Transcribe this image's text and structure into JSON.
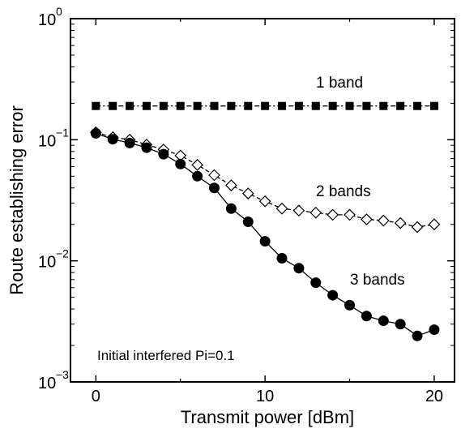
{
  "chart_data": {
    "type": "line",
    "title": "",
    "xlabel": "Transmit power [dBm]",
    "ylabel": "Route establishing error",
    "x_scale": "linear",
    "y_scale": "log",
    "xlim": [
      -1.5,
      21.2
    ],
    "ylim": [
      0.001,
      1
    ],
    "x_ticks": [
      0,
      10,
      20
    ],
    "y_ticks": [
      {
        "value": 0.001,
        "base": "10",
        "exp": "−3"
      },
      {
        "value": 0.01,
        "base": "10",
        "exp": "−2"
      },
      {
        "value": 0.1,
        "base": "10",
        "exp": "−1"
      },
      {
        "value": 1,
        "base": "10",
        "exp": "0"
      }
    ],
    "grid": false,
    "legend": "none",
    "x": [
      0,
      1,
      2,
      3,
      4,
      5,
      6,
      7,
      8,
      9,
      10,
      11,
      12,
      13,
      14,
      15,
      16,
      17,
      18,
      19,
      20
    ],
    "series": [
      {
        "name": "1 band",
        "marker": "filled-square",
        "line": "dash-dot",
        "values": [
          0.19,
          0.19,
          0.19,
          0.19,
          0.19,
          0.19,
          0.19,
          0.19,
          0.19,
          0.19,
          0.19,
          0.19,
          0.19,
          0.19,
          0.19,
          0.19,
          0.19,
          0.19,
          0.19,
          0.19,
          0.19
        ]
      },
      {
        "name": "2 bands",
        "marker": "open-diamond",
        "line": "dashed",
        "values": [
          0.115,
          0.105,
          0.1,
          0.091,
          0.083,
          0.074,
          0.062,
          0.051,
          0.042,
          0.036,
          0.031,
          0.027,
          0.026,
          0.025,
          0.024,
          0.024,
          0.022,
          0.0215,
          0.0205,
          0.019,
          0.02
        ]
      },
      {
        "name": "3 bands",
        "marker": "filled-circle",
        "line": "solid",
        "values": [
          0.113,
          0.101,
          0.094,
          0.086,
          0.076,
          0.063,
          0.05,
          0.04,
          0.027,
          0.021,
          0.0145,
          0.0105,
          0.0087,
          0.0066,
          0.0052,
          0.0043,
          0.0035,
          0.0032,
          0.003,
          0.0024,
          0.0027
        ]
      }
    ],
    "annotation": "Initial interfered Pi=0.1",
    "colors": {
      "line": "#000000",
      "marker_fill": "#000000",
      "open_fill": "#ffffff"
    }
  }
}
